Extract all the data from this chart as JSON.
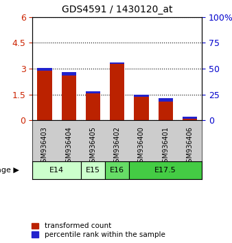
{
  "title": "GDS4591 / 1430120_at",
  "samples": [
    "GSM936403",
    "GSM936404",
    "GSM936405",
    "GSM936402",
    "GSM936400",
    "GSM936401",
    "GSM936406"
  ],
  "transformed_counts": [
    2.88,
    2.62,
    1.55,
    3.28,
    1.35,
    1.1,
    0.08
  ],
  "percentile_blue_left": [
    0.18,
    0.18,
    0.12,
    0.1,
    0.12,
    0.2,
    0.12
  ],
  "bar_color_red": "#bb2200",
  "bar_color_blue": "#2222cc",
  "left_yticks": [
    0,
    1.5,
    3.0,
    4.5,
    6
  ],
  "left_ylabels": [
    "0",
    "1.5",
    "3",
    "4.5",
    "6"
  ],
  "right_yticks": [
    0,
    25,
    50,
    75,
    100
  ],
  "right_ylabels": [
    "0",
    "25",
    "50",
    "75",
    "100%"
  ],
  "ylim": [
    0,
    6
  ],
  "right_ylim": [
    0,
    100
  ],
  "age_groups": [
    {
      "label": "E14",
      "start": 0,
      "end": 2,
      "color": "#ccffcc"
    },
    {
      "label": "E15",
      "start": 2,
      "end": 3,
      "color": "#ccffcc"
    },
    {
      "label": "E16",
      "start": 3,
      "end": 4,
      "color": "#66dd66"
    },
    {
      "label": "E17.5",
      "start": 4,
      "end": 7,
      "color": "#44cc44"
    }
  ],
  "background_color": "#ffffff",
  "plot_bg_color": "#ffffff",
  "tick_label_color_left": "#cc2200",
  "tick_label_color_right": "#0000cc",
  "legend_red_label": "transformed count",
  "legend_blue_label": "percentile rank within the sample",
  "age_label": "age",
  "xlabel_area_color": "#cccccc",
  "figsize": [
    3.38,
    3.54
  ],
  "dpi": 100
}
